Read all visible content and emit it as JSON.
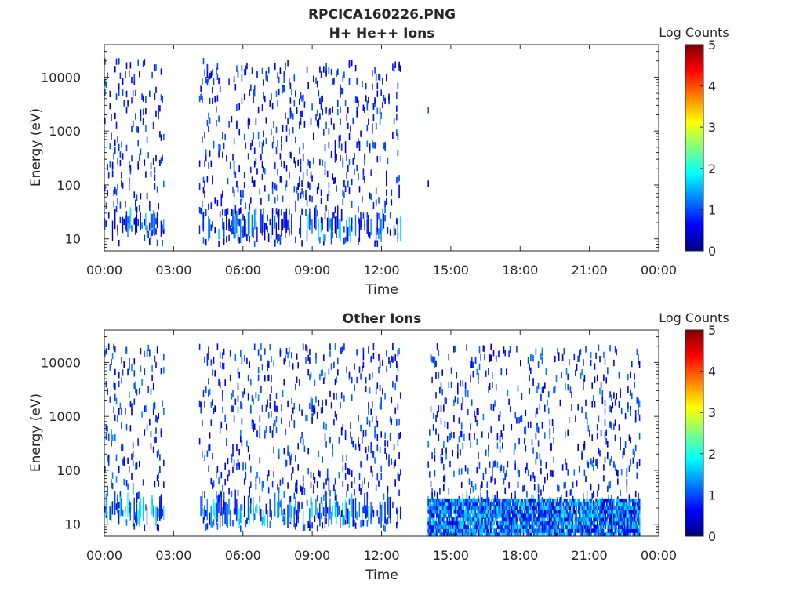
{
  "figure": {
    "title_line1": "RPCICA160226.PNG"
  },
  "chart_data": [
    {
      "type": "heatmap",
      "title": "H+ He++ Ions",
      "xlabel": "Time",
      "ylabel": "Energy (eV)",
      "x_ticks": [
        "00:00",
        "03:00",
        "06:00",
        "09:00",
        "12:00",
        "15:00",
        "18:00",
        "21:00",
        "00:00"
      ],
      "x_range_hours": [
        0,
        24
      ],
      "y_scale": "log",
      "y_ticks": [
        "10",
        "100",
        "1000",
        "10000"
      ],
      "y_tick_values": [
        10,
        100,
        1000,
        10000
      ],
      "ylim": [
        6,
        40000
      ],
      "colorbar": {
        "label": "Log Counts",
        "ticks": [
          "0",
          "1",
          "2",
          "3",
          "4",
          "5"
        ],
        "range": [
          0,
          5
        ],
        "colormap": "jet"
      },
      "grid": false,
      "data_intervals_hours": [
        [
          0,
          2.6
        ],
        [
          4.1,
          12.85
        ],
        [
          14.0,
          14.05
        ]
      ],
      "typical_log_counts": [
        0.3,
        1.8
      ]
    },
    {
      "type": "heatmap",
      "title": "Other Ions",
      "xlabel": "Time",
      "ylabel": "Energy (eV)",
      "x_ticks": [
        "00:00",
        "03:00",
        "06:00",
        "09:00",
        "12:00",
        "15:00",
        "18:00",
        "21:00",
        "00:00"
      ],
      "x_range_hours": [
        0,
        24
      ],
      "y_scale": "log",
      "y_ticks": [
        "10",
        "100",
        "1000",
        "10000"
      ],
      "y_tick_values": [
        10,
        100,
        1000,
        10000
      ],
      "ylim": [
        6,
        40000
      ],
      "colorbar": {
        "label": "Log Counts",
        "ticks": [
          "0",
          "1",
          "2",
          "3",
          "4",
          "5"
        ],
        "range": [
          0,
          5
        ],
        "colormap": "jet"
      },
      "grid": false,
      "data_intervals_hours": [
        [
          0,
          2.6
        ],
        [
          4.1,
          12.85
        ],
        [
          14.0,
          23.2
        ]
      ],
      "dense_band_hours": [
        14.0,
        23.2
      ],
      "dense_band_energy_eV": [
        6,
        30
      ],
      "typical_log_counts": [
        0.3,
        2.0
      ]
    }
  ]
}
